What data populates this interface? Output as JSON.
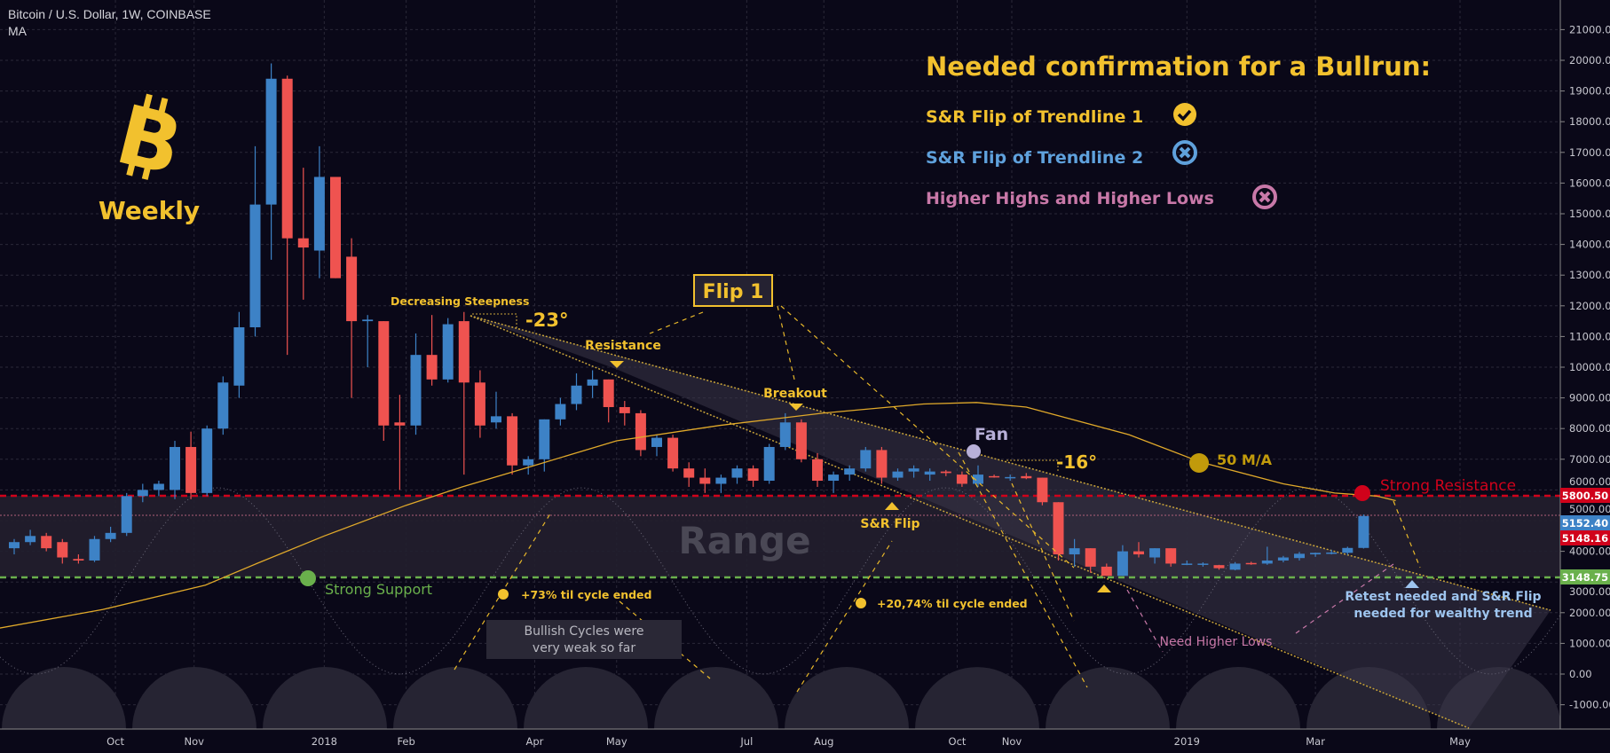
{
  "header": {
    "symbol": "Bitcoin / U.S. Dollar, 1W, COINBASE",
    "indicator": "MA"
  },
  "logo": {
    "icon": "bitcoin-icon",
    "label": "Weekly"
  },
  "checklist": {
    "title": "Needed confirmation for a Bullrun:",
    "items": [
      {
        "label": "S&R Flip of Trendline 1",
        "status": "done",
        "icon": "check-circle-icon",
        "color": "#f2c12e"
      },
      {
        "label": "S&R Flip of Trendline 2",
        "status": "missing",
        "icon": "x-circle-icon",
        "color": "#5fa1dc"
      },
      {
        "label": "Higher Highs and Higher Lows",
        "status": "missing",
        "icon": "x-circle-icon",
        "color": "#c878a8"
      }
    ]
  },
  "annotations": {
    "decreasing": "Decreasing Steepness",
    "angle1": "-23°",
    "flip1": "Flip 1",
    "resistance": "Resistance",
    "breakout": "Breakout",
    "fan": "Fan",
    "angle2": "-16°",
    "ma_label": "50 M/A",
    "strong_resistance": "Strong Resistance",
    "range": "Range",
    "sr_flip": "S&R Flip",
    "strong_support": "Strong Support",
    "cycle1": "+73% til cycle ended",
    "cycle2": "+20,74% til cycle ended",
    "bullish_line1": "Bullish Cycles were",
    "bullish_line2": "very weak so far",
    "higher_lows": "Need Higher Lows",
    "retest_line1": "Retest needed and S&R Flip",
    "retest_line2": "needed for wealthy trend"
  },
  "colors": {
    "up": "#3d82c6",
    "down": "#ef5350",
    "accent": "#f2c12e",
    "ma": "#e0a92a",
    "support": "#6ab04c",
    "resistance": "#d0021b"
  },
  "chart_data": {
    "type": "candlestick",
    "title": "Bitcoin / U.S. Dollar, 1W, COINBASE",
    "ylim": [
      -1700,
      21800
    ],
    "yticks": [
      -1000,
      0,
      1000,
      2000,
      3000,
      4000,
      5000,
      6000,
      7000,
      8000,
      9000,
      10000,
      11000,
      12000,
      13000,
      14000,
      15000,
      16000,
      17000,
      18000,
      19000,
      20000,
      21000
    ],
    "xticks": [
      {
        "label": "Oct",
        "week": 6.3
      },
      {
        "label": "Nov",
        "week": 11.2
      },
      {
        "label": "2018",
        "week": 19.3
      },
      {
        "label": "Feb",
        "week": 24.4
      },
      {
        "label": "Apr",
        "week": 32.4
      },
      {
        "label": "May",
        "week": 37.5
      },
      {
        "label": "Jul",
        "week": 45.6
      },
      {
        "label": "Aug",
        "week": 50.4
      },
      {
        "label": "Oct",
        "week": 58.7
      },
      {
        "label": "Nov",
        "week": 62.1
      },
      {
        "label": "2019",
        "week": 73
      },
      {
        "label": "Mar",
        "week": 81
      },
      {
        "label": "May",
        "week": 90
      }
    ],
    "candles": [
      [
        4100,
        4400,
        3900,
        4300
      ],
      [
        4300,
        4700,
        4200,
        4500
      ],
      [
        4500,
        4600,
        4000,
        4100
      ],
      [
        4300,
        4400,
        3600,
        3800
      ],
      [
        3750,
        3900,
        3600,
        3700
      ],
      [
        3700,
        4500,
        3650,
        4400
      ],
      [
        4400,
        4800,
        4300,
        4600
      ],
      [
        4600,
        5900,
        4500,
        5800
      ],
      [
        5800,
        6200,
        5600,
        6000
      ],
      [
        6000,
        6300,
        5800,
        6200
      ],
      [
        6000,
        7600,
        5700,
        7400
      ],
      [
        7400,
        7900,
        5700,
        5900
      ],
      [
        5900,
        8100,
        5800,
        8000
      ],
      [
        8000,
        9700,
        7800,
        9500
      ],
      [
        9400,
        11800,
        9000,
        11300
      ],
      [
        11300,
        17200,
        11000,
        15300
      ],
      [
        15300,
        19900,
        13500,
        19400
      ],
      [
        19400,
        19500,
        10400,
        14200
      ],
      [
        14200,
        16500,
        12200,
        13900
      ],
      [
        13800,
        17200,
        12900,
        16200
      ],
      [
        16200,
        16200,
        12900,
        12900
      ],
      [
        13600,
        14200,
        9000,
        11500
      ],
      [
        11500,
        11700,
        10000,
        11550
      ],
      [
        11500,
        11500,
        7600,
        8100
      ],
      [
        8200,
        9100,
        6000,
        8100
      ],
      [
        8100,
        11100,
        7800,
        10400
      ],
      [
        10400,
        11700,
        9400,
        9600
      ],
      [
        9600,
        11600,
        9500,
        11400
      ],
      [
        11500,
        11800,
        6500,
        9500
      ],
      [
        9500,
        9900,
        7700,
        8100
      ],
      [
        8200,
        9200,
        8000,
        8400
      ],
      [
        8400,
        8500,
        6500,
        6800
      ],
      [
        6800,
        7100,
        6500,
        7000
      ],
      [
        7000,
        8300,
        6600,
        8300
      ],
      [
        8300,
        9000,
        8100,
        8800
      ],
      [
        8800,
        9800,
        8600,
        9400
      ],
      [
        9400,
        9900,
        9000,
        9600
      ],
      [
        9600,
        9600,
        8200,
        8700
      ],
      [
        8700,
        8900,
        8100,
        8500
      ],
      [
        8500,
        8600,
        7100,
        7300
      ],
      [
        7400,
        7800,
        7100,
        7700
      ],
      [
        7700,
        7800,
        6600,
        6700
      ],
      [
        6700,
        6900,
        6100,
        6400
      ],
      [
        6400,
        6700,
        5900,
        6200
      ],
      [
        6200,
        6500,
        5900,
        6400
      ],
      [
        6400,
        6800,
        6200,
        6700
      ],
      [
        6700,
        6800,
        6100,
        6300
      ],
      [
        6300,
        7500,
        6200,
        7400
      ],
      [
        7400,
        8500,
        7300,
        8200
      ],
      [
        8200,
        8300,
        6900,
        7000
      ],
      [
        7000,
        7200,
        6100,
        6300
      ],
      [
        6300,
        6600,
        5900,
        6500
      ],
      [
        6500,
        6800,
        6300,
        6700
      ],
      [
        6700,
        7400,
        6600,
        7300
      ],
      [
        7300,
        7400,
        6200,
        6400
      ],
      [
        6400,
        6700,
        6300,
        6600
      ],
      [
        6600,
        6800,
        6400,
        6700
      ],
      [
        6500,
        6700,
        6300,
        6600
      ],
      [
        6600,
        6650,
        6450,
        6550
      ],
      [
        6500,
        6600,
        6100,
        6200
      ],
      [
        6200,
        6800,
        6100,
        6500
      ],
      [
        6450,
        6500,
        6400,
        6420
      ],
      [
        6400,
        6500,
        6300,
        6420
      ],
      [
        6450,
        6550,
        6350,
        6380
      ],
      [
        6400,
        6400,
        5500,
        5600
      ],
      [
        5600,
        5600,
        3700,
        3900
      ],
      [
        3900,
        4400,
        3500,
        4100
      ],
      [
        4100,
        4100,
        3300,
        3500
      ],
      [
        3500,
        3600,
        3200,
        3200
      ],
      [
        3200,
        4200,
        3200,
        4000
      ],
      [
        4000,
        4300,
        3800,
        3900
      ],
      [
        3800,
        4100,
        3600,
        4100
      ],
      [
        4100,
        4100,
        3500,
        3600
      ],
      [
        3580,
        3700,
        3550,
        3600
      ],
      [
        3580,
        3640,
        3500,
        3600
      ],
      [
        3550,
        3560,
        3400,
        3450
      ],
      [
        3400,
        3650,
        3380,
        3600
      ],
      [
        3620,
        3660,
        3560,
        3600
      ],
      [
        3600,
        4150,
        3560,
        3700
      ],
      [
        3700,
        3850,
        3640,
        3800
      ],
      [
        3780,
        3980,
        3700,
        3920
      ],
      [
        3900,
        3960,
        3820,
        3950
      ],
      [
        3950,
        4050,
        3900,
        3960
      ],
      [
        3950,
        4150,
        3880,
        4110
      ],
      [
        4110,
        5200,
        4090,
        5150
      ]
    ],
    "ma50": [
      [
        -0.9,
        1500
      ],
      [
        5.5,
        2100
      ],
      [
        11.9,
        2900
      ],
      [
        15.1,
        3600
      ],
      [
        19.3,
        4500
      ],
      [
        24.4,
        5500
      ],
      [
        27.9,
        6100
      ],
      [
        32.4,
        6800
      ],
      [
        37.5,
        7600
      ],
      [
        43.9,
        8100
      ],
      [
        50.3,
        8500
      ],
      [
        56.6,
        8800
      ],
      [
        59.9,
        8850
      ],
      [
        63,
        8700
      ],
      [
        69.4,
        7800
      ],
      [
        73.9,
        6900
      ],
      [
        79,
        6200
      ],
      [
        82.2,
        5900
      ],
      [
        84.8,
        5800
      ],
      [
        86,
        5650
      ]
    ],
    "levels": {
      "strong_resistance": 5800.5,
      "last_close": 5152.4,
      "ma_value": 5148.16,
      "strong_support": 3148.75
    },
    "price_labels": [
      "5800.50",
      "5152.40",
      "5148.16",
      "3148.75"
    ]
  }
}
